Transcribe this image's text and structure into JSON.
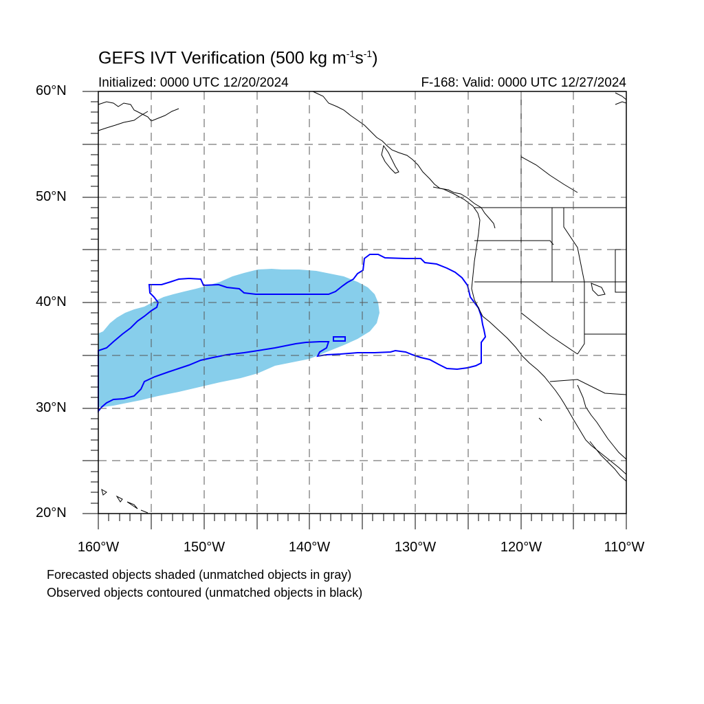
{
  "header": {
    "title_main": "GEFS IVT Verification (500 kg m",
    "title_exp1": "-1",
    "title_mid": "s",
    "title_exp2": "-1",
    "title_end": ")",
    "initialized": "Initialized: 0000 UTC 12/20/2024",
    "valid": "F-168: Valid: 0000 UTC 12/27/2024"
  },
  "axes": {
    "lat_labels": [
      "60°N",
      "50°N",
      "40°N",
      "30°N",
      "20°N"
    ],
    "lon_labels": [
      "160°W",
      "150°W",
      "140°W",
      "130°W",
      "120°W",
      "110°W"
    ],
    "lat_range": [
      20,
      60
    ],
    "lon_range": [
      -160,
      -110
    ],
    "grid": "dashed every 5 degrees"
  },
  "legend": {
    "line1": "Forecasted objects shaded (unmatched objects in gray)",
    "line2": "Observed objects contoured (unmatched objects in black)"
  },
  "colors": {
    "forecast_fill": "#87ceeb",
    "observed_contour": "#0000ff",
    "grid": "#555555",
    "coastline": "#000000"
  }
}
